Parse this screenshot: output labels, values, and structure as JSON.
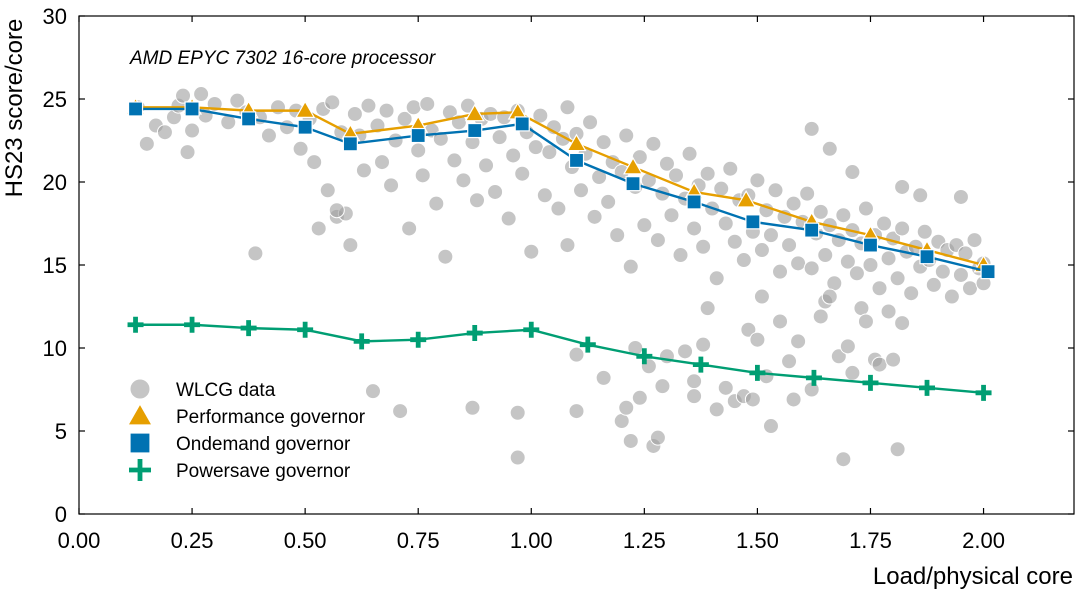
{
  "chart_data": {
    "type": "scatter",
    "title": "",
    "annotation": "AMD EPYC 7302 16-core processor",
    "xlabel": "Load/physical core",
    "ylabel": "HS23 score/core",
    "xlim": [
      0,
      2.2
    ],
    "ylim": [
      0,
      30
    ],
    "xticks": [
      0,
      0.25,
      0.5,
      0.75,
      1.0,
      1.25,
      1.5,
      1.75,
      2.0
    ],
    "xtick_labels": [
      "0.00",
      "0.25",
      "0.50",
      "0.75",
      "1.00",
      "1.25",
      "1.50",
      "1.75",
      "2.00"
    ],
    "yticks": [
      0,
      5,
      10,
      15,
      20,
      25,
      30
    ],
    "ytick_labels": [
      "0",
      "5",
      "10",
      "15",
      "20",
      "25",
      "30"
    ],
    "grid": false,
    "legend_position": "bottom-left",
    "colors": {
      "wlcg": "#9e9e9e",
      "performance": "#e69f00",
      "ondemand": "#0072b2",
      "powersave": "#009e73"
    },
    "series": [
      {
        "name": "WLCG data",
        "marker": "circle",
        "style": "scatter",
        "points": [
          [
            0.13,
            24.5
          ],
          [
            0.15,
            22.3
          ],
          [
            0.17,
            23.4
          ],
          [
            0.19,
            23.0
          ],
          [
            0.21,
            23.9
          ],
          [
            0.22,
            24.6
          ],
          [
            0.23,
            25.2
          ],
          [
            0.24,
            21.8
          ],
          [
            0.25,
            23.1
          ],
          [
            0.27,
            25.3
          ],
          [
            0.28,
            24.0
          ],
          [
            0.3,
            24.7
          ],
          [
            0.33,
            23.6
          ],
          [
            0.35,
            24.9
          ],
          [
            0.37,
            24.2
          ],
          [
            0.4,
            23.9
          ],
          [
            0.42,
            22.8
          ],
          [
            0.44,
            24.5
          ],
          [
            0.46,
            23.3
          ],
          [
            0.48,
            24.3
          ],
          [
            0.49,
            22.0
          ],
          [
            0.51,
            23.8
          ],
          [
            0.52,
            21.2
          ],
          [
            0.54,
            24.4
          ],
          [
            0.55,
            19.5
          ],
          [
            0.56,
            24.8
          ],
          [
            0.57,
            17.9
          ],
          [
            0.58,
            23.0
          ],
          [
            0.59,
            18.1
          ],
          [
            0.6,
            16.2
          ],
          [
            0.61,
            24.1
          ],
          [
            0.62,
            22.8
          ],
          [
            0.63,
            20.7
          ],
          [
            0.64,
            24.6
          ],
          [
            0.66,
            23.4
          ],
          [
            0.67,
            21.2
          ],
          [
            0.68,
            24.3
          ],
          [
            0.69,
            19.8
          ],
          [
            0.7,
            22.5
          ],
          [
            0.72,
            23.8
          ],
          [
            0.73,
            17.2
          ],
          [
            0.74,
            24.5
          ],
          [
            0.75,
            21.9
          ],
          [
            0.76,
            20.4
          ],
          [
            0.77,
            24.7
          ],
          [
            0.78,
            23.1
          ],
          [
            0.79,
            18.7
          ],
          [
            0.8,
            22.6
          ],
          [
            0.81,
            15.5
          ],
          [
            0.82,
            24.2
          ],
          [
            0.83,
            21.3
          ],
          [
            0.84,
            23.6
          ],
          [
            0.85,
            20.1
          ],
          [
            0.86,
            24.6
          ],
          [
            0.87,
            22.4
          ],
          [
            0.88,
            18.9
          ],
          [
            0.89,
            23.8
          ],
          [
            0.9,
            21.0
          ],
          [
            0.91,
            24.1
          ],
          [
            0.92,
            19.4
          ],
          [
            0.93,
            22.7
          ],
          [
            0.94,
            23.9
          ],
          [
            0.95,
            17.8
          ],
          [
            0.96,
            21.6
          ],
          [
            0.97,
            24.3
          ],
          [
            0.98,
            20.5
          ],
          [
            0.99,
            23.0
          ],
          [
            1.0,
            15.8
          ],
          [
            1.01,
            22.1
          ],
          [
            1.02,
            24.0
          ],
          [
            1.03,
            19.2
          ],
          [
            1.04,
            21.8
          ],
          [
            1.05,
            23.3
          ],
          [
            1.06,
            18.4
          ],
          [
            1.07,
            22.6
          ],
          [
            1.08,
            24.5
          ],
          [
            1.08,
            16.2
          ],
          [
            1.09,
            20.9
          ],
          [
            1.1,
            22.9
          ],
          [
            1.11,
            19.5
          ],
          [
            1.12,
            21.7
          ],
          [
            1.13,
            23.6
          ],
          [
            1.14,
            17.9
          ],
          [
            1.15,
            20.3
          ],
          [
            1.16,
            22.4
          ],
          [
            1.17,
            18.8
          ],
          [
            1.18,
            21.2
          ],
          [
            1.19,
            16.8
          ],
          [
            1.2,
            20.6
          ],
          [
            1.21,
            22.8
          ],
          [
            1.22,
            14.9
          ],
          [
            1.23,
            19.7
          ],
          [
            1.24,
            21.5
          ],
          [
            1.25,
            17.4
          ],
          [
            1.26,
            20.1
          ],
          [
            1.27,
            22.3
          ],
          [
            1.28,
            16.5
          ],
          [
            1.29,
            19.3
          ],
          [
            1.3,
            21.1
          ],
          [
            1.31,
            18.0
          ],
          [
            1.32,
            20.4
          ],
          [
            1.33,
            15.6
          ],
          [
            1.34,
            19.0
          ],
          [
            1.35,
            21.7
          ],
          [
            1.36,
            17.2
          ],
          [
            1.37,
            19.8
          ],
          [
            1.38,
            16.1
          ],
          [
            1.39,
            20.5
          ],
          [
            1.4,
            18.4
          ],
          [
            1.41,
            14.2
          ],
          [
            1.42,
            19.6
          ],
          [
            1.43,
            17.5
          ],
          [
            1.44,
            20.8
          ],
          [
            1.45,
            16.4
          ],
          [
            1.46,
            18.9
          ],
          [
            1.47,
            15.3
          ],
          [
            1.48,
            19.2
          ],
          [
            1.49,
            17.0
          ],
          [
            1.5,
            20.1
          ],
          [
            1.51,
            15.9
          ],
          [
            1.52,
            18.3
          ],
          [
            1.53,
            16.8
          ],
          [
            1.54,
            19.5
          ],
          [
            1.55,
            14.6
          ],
          [
            1.56,
            17.9
          ],
          [
            1.57,
            16.2
          ],
          [
            1.58,
            18.7
          ],
          [
            1.59,
            15.1
          ],
          [
            1.6,
            17.6
          ],
          [
            1.61,
            19.3
          ],
          [
            1.62,
            14.8
          ],
          [
            1.63,
            16.9
          ],
          [
            1.64,
            18.2
          ],
          [
            1.65,
            15.6
          ],
          [
            1.66,
            17.4
          ],
          [
            1.67,
            13.9
          ],
          [
            1.68,
            16.5
          ],
          [
            1.69,
            18.0
          ],
          [
            1.7,
            15.2
          ],
          [
            1.71,
            17.1
          ],
          [
            1.72,
            14.5
          ],
          [
            1.73,
            16.3
          ],
          [
            1.74,
            18.4
          ],
          [
            1.75,
            15.0
          ],
          [
            1.76,
            16.8
          ],
          [
            1.77,
            13.6
          ],
          [
            1.78,
            17.5
          ],
          [
            1.79,
            15.4
          ],
          [
            1.8,
            16.6
          ],
          [
            1.81,
            14.2
          ],
          [
            1.82,
            17.2
          ],
          [
            1.83,
            15.8
          ],
          [
            1.84,
            13.3
          ],
          [
            1.85,
            16.1
          ],
          [
            1.86,
            14.9
          ],
          [
            1.87,
            17.0
          ],
          [
            1.88,
            15.3
          ],
          [
            1.89,
            13.8
          ],
          [
            1.9,
            16.4
          ],
          [
            1.91,
            14.6
          ],
          [
            1.92,
            15.9
          ],
          [
            1.93,
            13.1
          ],
          [
            1.94,
            16.2
          ],
          [
            1.95,
            14.4
          ],
          [
            1.96,
            15.7
          ],
          [
            1.97,
            13.6
          ],
          [
            1.98,
            16.5
          ],
          [
            1.99,
            14.8
          ],
          [
            2.0,
            15.1
          ],
          [
            2.0,
            13.9
          ],
          [
            0.39,
            15.7
          ],
          [
            0.53,
            17.2
          ],
          [
            0.57,
            18.3
          ],
          [
            0.65,
            7.4
          ],
          [
            0.71,
            6.2
          ],
          [
            0.87,
            6.4
          ],
          [
            0.97,
            6.1
          ],
          [
            0.97,
            3.4
          ],
          [
            1.1,
            9.6
          ],
          [
            1.1,
            6.2
          ],
          [
            1.16,
            8.2
          ],
          [
            1.2,
            5.6
          ],
          [
            1.21,
            6.4
          ],
          [
            1.22,
            4.4
          ],
          [
            1.23,
            10.0
          ],
          [
            1.24,
            7.0
          ],
          [
            1.26,
            8.9
          ],
          [
            1.27,
            4.1
          ],
          [
            1.28,
            4.6
          ],
          [
            1.29,
            7.7
          ],
          [
            1.3,
            9.5
          ],
          [
            1.34,
            9.8
          ],
          [
            1.36,
            8.0
          ],
          [
            1.36,
            7.1
          ],
          [
            1.38,
            10.2
          ],
          [
            1.39,
            12.4
          ],
          [
            1.41,
            6.3
          ],
          [
            1.43,
            7.6
          ],
          [
            1.45,
            6.8
          ],
          [
            1.47,
            7.1
          ],
          [
            1.48,
            11.1
          ],
          [
            1.49,
            6.9
          ],
          [
            1.5,
            10.5
          ],
          [
            1.51,
            13.1
          ],
          [
            1.52,
            8.3
          ],
          [
            1.53,
            5.3
          ],
          [
            1.55,
            11.6
          ],
          [
            1.57,
            9.2
          ],
          [
            1.58,
            6.9
          ],
          [
            1.59,
            10.4
          ],
          [
            1.62,
            7.5
          ],
          [
            1.64,
            11.9
          ],
          [
            1.65,
            12.8
          ],
          [
            1.66,
            13.1
          ],
          [
            1.68,
            9.5
          ],
          [
            1.69,
            3.3
          ],
          [
            1.7,
            10.1
          ],
          [
            1.71,
            8.5
          ],
          [
            1.73,
            12.4
          ],
          [
            1.74,
            11.6
          ],
          [
            1.76,
            9.3
          ],
          [
            1.77,
            9.0
          ],
          [
            1.79,
            12.2
          ],
          [
            1.8,
            9.3
          ],
          [
            1.81,
            3.9
          ],
          [
            1.82,
            11.5
          ],
          [
            1.62,
            23.2
          ],
          [
            1.66,
            22.0
          ],
          [
            1.71,
            20.6
          ],
          [
            1.82,
            19.7
          ],
          [
            1.86,
            19.2
          ],
          [
            1.95,
            19.1
          ]
        ]
      },
      {
        "name": "Performance governor",
        "marker": "triangle",
        "style": "line+marker",
        "x": [
          0.125,
          0.25,
          0.375,
          0.5,
          0.6,
          0.75,
          0.875,
          0.97,
          1.1,
          1.225,
          1.36,
          1.475,
          1.62,
          1.75,
          1.875,
          2.0
        ],
        "y": [
          24.5,
          24.5,
          24.3,
          24.3,
          22.9,
          23.4,
          24.1,
          24.2,
          22.3,
          20.9,
          19.4,
          18.9,
          17.6,
          16.8,
          15.9,
          15.0
        ]
      },
      {
        "name": "Ondemand governor",
        "marker": "square",
        "style": "line+marker",
        "x": [
          0.125,
          0.25,
          0.375,
          0.5,
          0.6,
          0.75,
          0.875,
          0.98,
          1.1,
          1.225,
          1.36,
          1.49,
          1.62,
          1.75,
          1.875,
          2.01
        ],
        "y": [
          24.4,
          24.4,
          23.8,
          23.3,
          22.3,
          22.8,
          23.1,
          23.5,
          21.3,
          19.9,
          18.8,
          17.6,
          17.1,
          16.2,
          15.5,
          14.6
        ]
      },
      {
        "name": "Powersave governor",
        "marker": "plus",
        "style": "line+marker",
        "x": [
          0.125,
          0.25,
          0.375,
          0.5,
          0.625,
          0.75,
          0.875,
          1.0,
          1.125,
          1.25,
          1.375,
          1.5,
          1.625,
          1.75,
          1.875,
          2.0
        ],
        "y": [
          11.4,
          11.4,
          11.2,
          11.1,
          10.4,
          10.5,
          10.9,
          11.1,
          10.2,
          9.5,
          9.0,
          8.5,
          8.2,
          7.9,
          7.6,
          7.3
        ]
      }
    ]
  }
}
